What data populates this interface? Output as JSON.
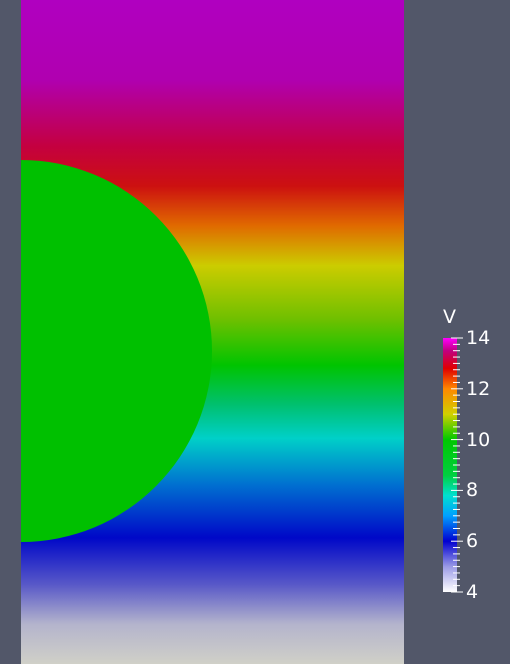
{
  "colorbar": {
    "title": "V",
    "range": [
      4,
      14
    ],
    "tick_labels": [
      "14",
      "12",
      "10",
      "8",
      "6",
      "4"
    ],
    "colormap": [
      {
        "value": 4,
        "color": "#ffffff"
      },
      {
        "value": 5,
        "color": "#9a9ae6"
      },
      {
        "value": 6,
        "color": "#0000d0"
      },
      {
        "value": 7,
        "color": "#00a0ff"
      },
      {
        "value": 7.8,
        "color": "#00e0d0"
      },
      {
        "value": 8.6,
        "color": "#00d040"
      },
      {
        "value": 10,
        "color": "#00c800"
      },
      {
        "value": 11,
        "color": "#d0d000"
      },
      {
        "value": 12,
        "color": "#ff8800"
      },
      {
        "value": 12.8,
        "color": "#e00000"
      },
      {
        "value": 13.5,
        "color": "#c00080"
      },
      {
        "value": 14,
        "color": "#ff00ff"
      }
    ]
  },
  "scene": {
    "background": "#525769",
    "sphere_color": "#00c000"
  }
}
